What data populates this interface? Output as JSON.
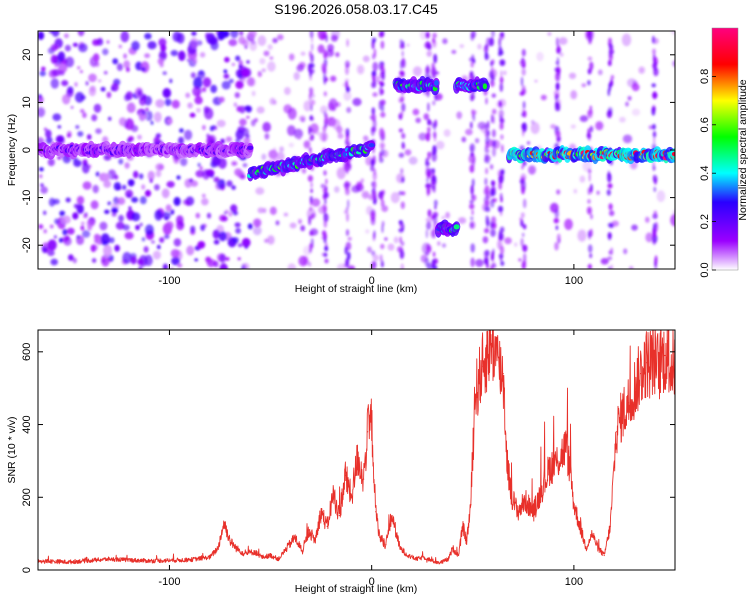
{
  "title": "S196.2026.058.03.17.C45",
  "chart_data": [
    {
      "id": "spectrogram",
      "type": "heatmap",
      "xlabel": "Height of straight line (km)",
      "ylabel": "Frequency (Hz)",
      "xlim": [
        -165,
        150
      ],
      "ylim": [
        -25,
        25
      ],
      "x_ticks": [
        -100,
        0,
        100
      ],
      "y_ticks": [
        -20,
        -10,
        0,
        10,
        20
      ],
      "colorbar": {
        "label": "Normalized spectral amplitude",
        "range": [
          0.0,
          1.0
        ],
        "ticks": [
          0.0,
          0.2,
          0.4,
          0.6,
          0.8
        ],
        "colors": [
          "#ffffff",
          "#9b00ff",
          "#2a00ff",
          "#00ffff",
          "#00ff00",
          "#ffff00",
          "#ff0000",
          "#ff007f"
        ]
      },
      "features": [
        {
          "name": "noise cloud",
          "x_range": [
            -165,
            -60
          ],
          "freq": 0,
          "amplitude": 0.25
        },
        {
          "name": "rising trace",
          "x_range": [
            -60,
            0
          ],
          "freq_start": -5,
          "freq_end": 0.5,
          "amplitude": 0.55
        },
        {
          "name": "high band 1",
          "x_range": [
            12,
            32
          ],
          "freq": 13.5,
          "amplitude": 0.55
        },
        {
          "name": "high band 2",
          "x_range": [
            42,
            56
          ],
          "freq": 13.5,
          "amplitude": 0.55
        },
        {
          "name": "low band",
          "x_range": [
            33,
            42
          ],
          "freq": -16.5,
          "amplitude": 0.5
        },
        {
          "name": "steady line",
          "x_range": [
            68,
            150
          ],
          "freq": -1,
          "amplitude": 0.9
        }
      ]
    },
    {
      "id": "snr",
      "type": "line",
      "xlabel": "Height of straight line (km)",
      "ylabel": "SNR (10 * v/v)",
      "xlim": [
        -165,
        150
      ],
      "ylim": [
        0,
        660
      ],
      "x_ticks": [
        -100,
        0,
        100
      ],
      "y_ticks": [
        0,
        200,
        400,
        600
      ],
      "color": "#e8302a",
      "series": [
        {
          "name": "SNR",
          "x": [
            -165,
            -150,
            -130,
            -110,
            -90,
            -80,
            -76,
            -73,
            -70,
            -67,
            -63,
            -58,
            -54,
            -50,
            -46,
            -42,
            -38,
            -34,
            -31,
            -28,
            -25,
            -22,
            -19,
            -16,
            -13,
            -10,
            -7,
            -4,
            -2,
            0,
            2,
            4,
            7,
            10,
            14,
            18,
            22,
            26,
            30,
            34,
            38,
            40,
            43,
            45,
            47,
            49,
            51,
            53,
            55,
            57,
            59,
            61,
            63,
            65,
            67,
            69,
            72,
            76,
            80,
            84,
            88,
            92,
            96,
            98,
            100,
            103,
            106,
            109,
            112,
            115,
            118,
            121,
            124,
            127,
            130,
            133,
            136,
            139,
            142,
            145,
            148,
            150
          ],
          "y": [
            25,
            22,
            30,
            25,
            28,
            35,
            60,
            130,
            80,
            60,
            45,
            50,
            35,
            40,
            30,
            60,
            90,
            50,
            110,
            80,
            160,
            120,
            210,
            150,
            260,
            200,
            310,
            250,
            380,
            410,
            160,
            90,
            70,
            150,
            60,
            40,
            30,
            35,
            25,
            20,
            30,
            60,
            40,
            120,
            80,
            180,
            480,
            520,
            560,
            590,
            630,
            600,
            560,
            540,
            300,
            210,
            160,
            190,
            160,
            220,
            280,
            300,
            340,
            280,
            180,
            120,
            60,
            100,
            60,
            40,
            120,
            380,
            430,
            460,
            500,
            540,
            570,
            580,
            560,
            590,
            560,
            570
          ]
        }
      ]
    }
  ]
}
